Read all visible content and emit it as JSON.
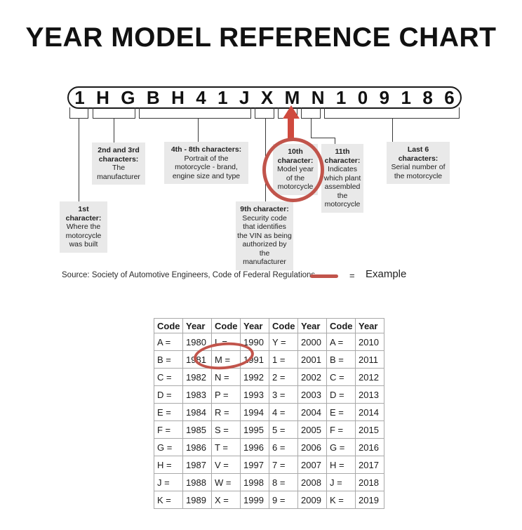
{
  "colors": {
    "accent_red": "#c1544b",
    "arrow_red": "#cf4a3e",
    "callout_gray": "#e9e9e9",
    "table_border_gray": "#a9a9a9"
  },
  "title": "YEAR MODEL REFERENCE CHART",
  "vin": {
    "chars": [
      "1",
      "H",
      "G",
      "B",
      "H",
      "4",
      "1",
      "J",
      "X",
      "M",
      "N",
      "1",
      "0",
      "9",
      "1",
      "8",
      "6"
    ]
  },
  "callouts": {
    "first": {
      "title": "1st character:",
      "body": "Where the motorcycle was built"
    },
    "second_third": {
      "title": "2nd and 3rd characters:",
      "body": "The manufacturer"
    },
    "fourth_eighth": {
      "title": "4th - 8th characters:",
      "body": "Portrait of the motorcycle - brand, engine size and type"
    },
    "ninth": {
      "title": "9th character:",
      "body": "Security code that identifies the VIN as being authorized by the manufacturer"
    },
    "tenth": {
      "title": "10th character:",
      "body": "Model year of the motorcycle"
    },
    "eleventh": {
      "title": "11th character:",
      "body": "Indicates which plant assembled the motorcycle"
    },
    "last_six": {
      "title": "Last 6 characters:",
      "body": "Serial number of the motorcycle"
    }
  },
  "legend": {
    "source": "Source:  Society of Automotive Engineers, Code of Federal Regulations",
    "equals": "=",
    "example": "Example"
  },
  "chart_data": {
    "type": "table",
    "headers": [
      "Code",
      "Year",
      "Code",
      "Year",
      "Code",
      "Year",
      "Code",
      "Year"
    ],
    "rows": [
      [
        "A =",
        "1980",
        "L =",
        "1990",
        "Y =",
        "2000",
        "A =",
        "2010"
      ],
      [
        "B =",
        "1981",
        "M =",
        "1991",
        "1 =",
        "2001",
        "B =",
        "2011"
      ],
      [
        "C =",
        "1982",
        "N =",
        "1992",
        "2 =",
        "2002",
        "C =",
        "2012"
      ],
      [
        "D =",
        "1983",
        "P =",
        "1993",
        "3 =",
        "2003",
        "D =",
        "2013"
      ],
      [
        "E =",
        "1984",
        "R =",
        "1994",
        "4 =",
        "2004",
        "E =",
        "2014"
      ],
      [
        "F =",
        "1985",
        "S =",
        "1995",
        "5 =",
        "2005",
        "F =",
        "2015"
      ],
      [
        "G =",
        "1986",
        "T =",
        "1996",
        "6 =",
        "2006",
        "G =",
        "2016"
      ],
      [
        "H =",
        "1987",
        "V =",
        "1997",
        "7 =",
        "2007",
        "H =",
        "2017"
      ],
      [
        "J =",
        "1988",
        "W =",
        "1998",
        "8 =",
        "2008",
        "J =",
        "2018"
      ],
      [
        "K =",
        "1989",
        "X =",
        "1999",
        "9 =",
        "2009",
        "K =",
        "2019"
      ]
    ],
    "highlighted_entry": "M = 1991"
  }
}
